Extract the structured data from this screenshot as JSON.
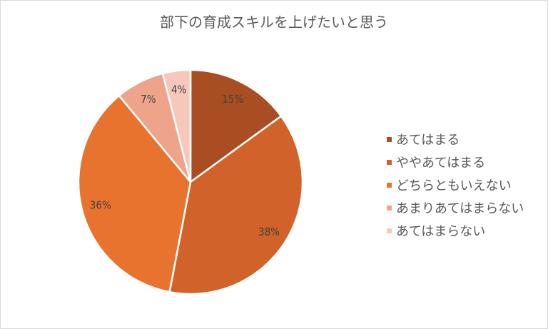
{
  "chart_data": {
    "type": "pie",
    "title": "部下の育成スキルを上げたいと思う",
    "categories": [
      "あてはまる",
      "ややあてはまる",
      "どちらともいえない",
      "あまりあてはまらない",
      "あてはまらない"
    ],
    "values": [
      15,
      38,
      36,
      7,
      4
    ],
    "labels": [
      "15%",
      "38%",
      "36%",
      "7%",
      "4%"
    ],
    "colors": [
      "#A84E22",
      "#D0622A",
      "#E8732F",
      "#EEA48A",
      "#F5C8BB"
    ],
    "legend_position": "right",
    "start": "top, clockwise"
  }
}
